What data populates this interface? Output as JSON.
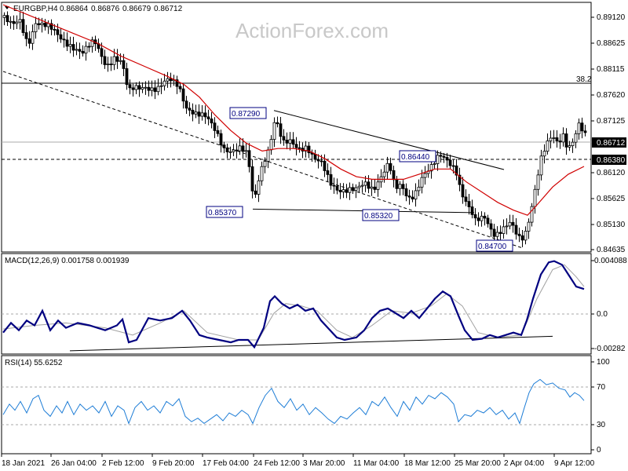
{
  "watermark": "ActionForex.com",
  "chart_data": [
    {
      "type": "candlestick",
      "title": "EURGBP,H4",
      "ohlc_header": {
        "open": "0.86864",
        "high": "0.86876",
        "low": "0.86679",
        "close": "0.86712"
      },
      "ylim": [
        0.8455,
        0.8938
      ],
      "y_ticks": [
        "0.89120",
        "0.88625",
        "0.88115",
        "0.87620",
        "0.87125",
        "0.86712",
        "0.86380",
        "0.86120",
        "0.85625",
        "0.85130",
        "0.84635"
      ],
      "x_ticks": [
        "18 Jan 2021",
        "26 Jan 04:00",
        "2 Feb 12:00",
        "9 Feb 20:00",
        "17 Feb 04:00",
        "24 Feb 12:00",
        "3 Mar 20:00",
        "11 Mar 04:00",
        "18 Mar 12:00",
        "25 Mar 20:00",
        "2 Apr 04:00",
        "9 Apr 12:00"
      ],
      "price_labels": [
        "0.87290",
        "0.86440",
        "0.85370",
        "0.85320",
        "0.84700"
      ],
      "fib_level": {
        "label": "38.2",
        "value": 0.8785
      },
      "current_price": {
        "label": "0.86712",
        "value": 0.86712
      },
      "support_line": {
        "label": "0.86380",
        "value": 0.8638
      },
      "close_path": [
        [
          0,
          0.891
        ],
        [
          10,
          0.889
        ],
        [
          20,
          0.89
        ],
        [
          30,
          0.886
        ],
        [
          40,
          0.8905
        ],
        [
          55,
          0.889
        ],
        [
          70,
          0.887
        ],
        [
          85,
          0.886
        ],
        [
          100,
          0.884
        ],
        [
          115,
          0.886
        ],
        [
          130,
          0.882
        ],
        [
          140,
          0.8835
        ],
        [
          150,
          0.882
        ],
        [
          158,
          0.876
        ],
        [
          165,
          0.877
        ],
        [
          180,
          0.878
        ],
        [
          195,
          0.877
        ],
        [
          210,
          0.8785
        ],
        [
          222,
          0.878
        ],
        [
          232,
          0.874
        ],
        [
          245,
          0.872
        ],
        [
          258,
          0.871
        ],
        [
          270,
          0.869
        ],
        [
          280,
          0.866
        ],
        [
          290,
          0.865
        ],
        [
          300,
          0.865
        ],
        [
          310,
          0.864
        ],
        [
          318,
          0.855
        ],
        [
          325,
          0.861
        ],
        [
          332,
          0.864
        ],
        [
          338,
          0.866
        ],
        [
          345,
          0.871
        ],
        [
          355,
          0.866
        ],
        [
          365,
          0.867
        ],
        [
          375,
          0.866
        ],
        [
          385,
          0.866
        ],
        [
          395,
          0.863
        ],
        [
          405,
          0.862
        ],
        [
          415,
          0.859
        ],
        [
          425,
          0.858
        ],
        [
          435,
          0.8575
        ],
        [
          448,
          0.857
        ],
        [
          460,
          0.8585
        ],
        [
          470,
          0.858
        ],
        [
          480,
          0.8605
        ],
        [
          490,
          0.8625
        ],
        [
          498,
          0.857
        ],
        [
          505,
          0.858
        ],
        [
          515,
          0.856
        ],
        [
          522,
          0.857
        ],
        [
          532,
          0.86
        ],
        [
          545,
          0.8615
        ],
        [
          555,
          0.864
        ],
        [
          565,
          0.8635
        ],
        [
          575,
          0.862
        ],
        [
          582,
          0.857
        ],
        [
          590,
          0.854
        ],
        [
          600,
          0.851
        ],
        [
          612,
          0.8525
        ],
        [
          625,
          0.849
        ],
        [
          635,
          0.8495
        ],
        [
          645,
          0.8505
        ],
        [
          655,
          0.848
        ],
        [
          662,
          0.8485
        ],
        [
          668,
          0.852
        ],
        [
          675,
          0.857
        ],
        [
          683,
          0.863
        ],
        [
          690,
          0.8655
        ],
        [
          698,
          0.8675
        ],
        [
          705,
          0.8665
        ],
        [
          712,
          0.8685
        ],
        [
          718,
          0.866
        ],
        [
          725,
          0.8675
        ],
        [
          732,
          0.87
        ],
        [
          740,
          0.8675
        ]
      ],
      "ma_path": [
        [
          0,
          0.8935
        ],
        [
          40,
          0.891
        ],
        [
          80,
          0.8885
        ],
        [
          120,
          0.886
        ],
        [
          150,
          0.8835
        ],
        [
          180,
          0.8815
        ],
        [
          210,
          0.8795
        ],
        [
          230,
          0.878
        ],
        [
          250,
          0.8755
        ],
        [
          270,
          0.872
        ],
        [
          290,
          0.869
        ],
        [
          310,
          0.8665
        ],
        [
          330,
          0.865
        ],
        [
          350,
          0.8655
        ],
        [
          370,
          0.8655
        ],
        [
          390,
          0.865
        ],
        [
          410,
          0.8635
        ],
        [
          430,
          0.8615
        ],
        [
          450,
          0.86
        ],
        [
          470,
          0.8595
        ],
        [
          490,
          0.8595
        ],
        [
          510,
          0.8595
        ],
        [
          530,
          0.8605
        ],
        [
          550,
          0.8615
        ],
        [
          570,
          0.8615
        ],
        [
          590,
          0.859
        ],
        [
          610,
          0.857
        ],
        [
          630,
          0.855
        ],
        [
          650,
          0.8535
        ],
        [
          668,
          0.8525
        ],
        [
          680,
          0.8545
        ],
        [
          700,
          0.858
        ],
        [
          720,
          0.8605
        ],
        [
          740,
          0.862
        ]
      ],
      "trendlines": [
        {
          "style": "dashed",
          "from": [
            0,
            0.8805
          ],
          "to": [
            660,
            0.8462
          ]
        },
        {
          "style": "solid",
          "from": [
            345,
            0.8729
          ],
          "to": [
            638,
            0.8614
          ]
        },
        {
          "style": "solid",
          "from": [
            318,
            0.8537
          ],
          "to": [
            600,
            0.853
          ]
        }
      ],
      "colors": {
        "candles": "#000000",
        "ma": "#d00000",
        "label_text": "#000080",
        "axis": "#000000",
        "grid": "#aaaaaa"
      }
    },
    {
      "type": "line",
      "title": "MACD(12,26,9) 0.001758 0.001939",
      "ylim": [
        -0.0035,
        0.0044
      ],
      "y_ticks": [
        "0.004088",
        "0.0",
        "-0.00282"
      ],
      "macd_path": [
        [
          0,
          -0.0018
        ],
        [
          10,
          -0.001
        ],
        [
          20,
          -0.0016
        ],
        [
          30,
          -0.0008
        ],
        [
          40,
          -0.0012
        ],
        [
          50,
          0.0
        ],
        [
          60,
          -0.0016
        ],
        [
          70,
          -0.0008
        ],
        [
          80,
          -0.0014
        ],
        [
          95,
          -0.001
        ],
        [
          110,
          -0.0012
        ],
        [
          130,
          -0.0016
        ],
        [
          145,
          -0.0012
        ],
        [
          152,
          -0.0007
        ],
        [
          160,
          -0.0026
        ],
        [
          170,
          -0.0024
        ],
        [
          185,
          -0.0006
        ],
        [
          200,
          -0.0008
        ],
        [
          215,
          -0.0006
        ],
        [
          228,
          0.0
        ],
        [
          238,
          -0.0008
        ],
        [
          250,
          -0.002
        ],
        [
          260,
          -0.0022
        ],
        [
          275,
          -0.0024
        ],
        [
          290,
          -0.0026
        ],
        [
          300,
          -0.0024
        ],
        [
          312,
          -0.0024
        ],
        [
          320,
          -0.003
        ],
        [
          332,
          -0.0014
        ],
        [
          340,
          0.0008
        ],
        [
          346,
          0.0012
        ],
        [
          355,
          0.0006
        ],
        [
          365,
          0.0002
        ],
        [
          375,
          0.0005
        ],
        [
          385,
          0.0
        ],
        [
          395,
          0.0002
        ],
        [
          405,
          -0.0008
        ],
        [
          415,
          -0.0015
        ],
        [
          425,
          -0.0022
        ],
        [
          435,
          -0.0024
        ],
        [
          450,
          -0.0022
        ],
        [
          460,
          -0.0016
        ],
        [
          470,
          -0.0006
        ],
        [
          480,
          0.0
        ],
        [
          490,
          0.0002
        ],
        [
          500,
          -0.0002
        ],
        [
          510,
          -0.0006
        ],
        [
          520,
          0.0
        ],
        [
          530,
          -0.0006
        ],
        [
          540,
          0.0002
        ],
        [
          550,
          0.001
        ],
        [
          560,
          0.0016
        ],
        [
          570,
          0.0012
        ],
        [
          580,
          -0.0004
        ],
        [
          588,
          -0.0016
        ],
        [
          598,
          -0.0024
        ],
        [
          610,
          -0.0023
        ],
        [
          620,
          -0.002
        ],
        [
          630,
          -0.0022
        ],
        [
          640,
          -0.002
        ],
        [
          650,
          -0.0018
        ],
        [
          660,
          -0.002
        ],
        [
          667,
          -0.0008
        ],
        [
          675,
          0.001
        ],
        [
          685,
          0.003
        ],
        [
          695,
          0.004
        ],
        [
          702,
          0.0041
        ],
        [
          712,
          0.0038
        ],
        [
          720,
          0.003
        ],
        [
          730,
          0.002
        ],
        [
          740,
          0.0018
        ]
      ],
      "signal_path": [
        [
          0,
          -0.0015
        ],
        [
          40,
          -0.0012
        ],
        [
          80,
          -0.001
        ],
        [
          130,
          -0.0014
        ],
        [
          165,
          -0.002
        ],
        [
          200,
          -0.001
        ],
        [
          230,
          0.0
        ],
        [
          260,
          -0.0018
        ],
        [
          300,
          -0.0024
        ],
        [
          325,
          -0.0024
        ],
        [
          345,
          -0.0002
        ],
        [
          360,
          0.0006
        ],
        [
          380,
          0.0004
        ],
        [
          400,
          0.0
        ],
        [
          425,
          -0.0016
        ],
        [
          445,
          -0.0022
        ],
        [
          470,
          -0.0012
        ],
        [
          495,
          0.0
        ],
        [
          520,
          -0.0002
        ],
        [
          545,
          0.0004
        ],
        [
          565,
          0.0014
        ],
        [
          585,
          0.0004
        ],
        [
          605,
          -0.0018
        ],
        [
          630,
          -0.0022
        ],
        [
          660,
          -0.002
        ],
        [
          680,
          0.001
        ],
        [
          700,
          0.0034
        ],
        [
          715,
          0.0038
        ],
        [
          730,
          0.0028
        ],
        [
          740,
          0.002
        ]
      ],
      "trendline": {
        "from": [
          85,
          -0.0033
        ],
        "to": [
          700,
          -0.0021
        ]
      },
      "colors": {
        "macd": "#000080",
        "signal": "#a0a0a0"
      }
    },
    {
      "type": "line",
      "title": "RSI(14) 55.6252",
      "ylim": [
        0,
        100
      ],
      "y_ticks": [
        "100",
        "70",
        "30",
        "0"
      ],
      "levels": [
        70,
        30
      ],
      "rsi_path": [
        [
          0,
          40
        ],
        [
          8,
          52
        ],
        [
          15,
          45
        ],
        [
          22,
          55
        ],
        [
          30,
          42
        ],
        [
          38,
          58
        ],
        [
          45,
          62
        ],
        [
          52,
          45
        ],
        [
          60,
          38
        ],
        [
          68,
          50
        ],
        [
          75,
          42
        ],
        [
          82,
          55
        ],
        [
          90,
          40
        ],
        [
          98,
          52
        ],
        [
          106,
          45
        ],
        [
          114,
          50
        ],
        [
          122,
          42
        ],
        [
          130,
          55
        ],
        [
          138,
          38
        ],
        [
          146,
          50
        ],
        [
          154,
          45
        ],
        [
          160,
          30
        ],
        [
          168,
          48
        ],
        [
          176,
          55
        ],
        [
          184,
          45
        ],
        [
          192,
          50
        ],
        [
          200,
          42
        ],
        [
          208,
          55
        ],
        [
          216,
          50
        ],
        [
          224,
          58
        ],
        [
          232,
          38
        ],
        [
          240,
          32
        ],
        [
          248,
          36
        ],
        [
          256,
          30
        ],
        [
          264,
          35
        ],
        [
          272,
          40
        ],
        [
          280,
          33
        ],
        [
          288,
          42
        ],
        [
          296,
          38
        ],
        [
          304,
          45
        ],
        [
          312,
          40
        ],
        [
          318,
          30
        ],
        [
          326,
          48
        ],
        [
          334,
          62
        ],
        [
          342,
          70
        ],
        [
          350,
          55
        ],
        [
          358,
          48
        ],
        [
          366,
          58
        ],
        [
          374,
          45
        ],
        [
          382,
          52
        ],
        [
          390,
          40
        ],
        [
          398,
          48
        ],
        [
          406,
          42
        ],
        [
          414,
          35
        ],
        [
          422,
          30
        ],
        [
          430,
          38
        ],
        [
          438,
          35
        ],
        [
          446,
          42
        ],
        [
          454,
          48
        ],
        [
          462,
          40
        ],
        [
          470,
          55
        ],
        [
          478,
          50
        ],
        [
          486,
          60
        ],
        [
          494,
          48
        ],
        [
          502,
          38
        ],
        [
          510,
          55
        ],
        [
          518,
          45
        ],
        [
          526,
          60
        ],
        [
          534,
          52
        ],
        [
          542,
          62
        ],
        [
          550,
          58
        ],
        [
          558,
          65
        ],
        [
          566,
          60
        ],
        [
          574,
          52
        ],
        [
          580,
          32
        ],
        [
          588,
          40
        ],
        [
          596,
          38
        ],
        [
          604,
          45
        ],
        [
          612,
          42
        ],
        [
          620,
          48
        ],
        [
          628,
          40
        ],
        [
          636,
          45
        ],
        [
          644,
          35
        ],
        [
          652,
          42
        ],
        [
          658,
          30
        ],
        [
          664,
          48
        ],
        [
          670,
          65
        ],
        [
          676,
          75
        ],
        [
          684,
          80
        ],
        [
          692,
          74
        ],
        [
          700,
          76
        ],
        [
          708,
          70
        ],
        [
          716,
          68
        ],
        [
          722,
          60
        ],
        [
          728,
          65
        ],
        [
          734,
          62
        ],
        [
          740,
          56
        ]
      ],
      "colors": {
        "rsi": "#1e7dd6",
        "levels": "#aaaaaa"
      }
    }
  ]
}
